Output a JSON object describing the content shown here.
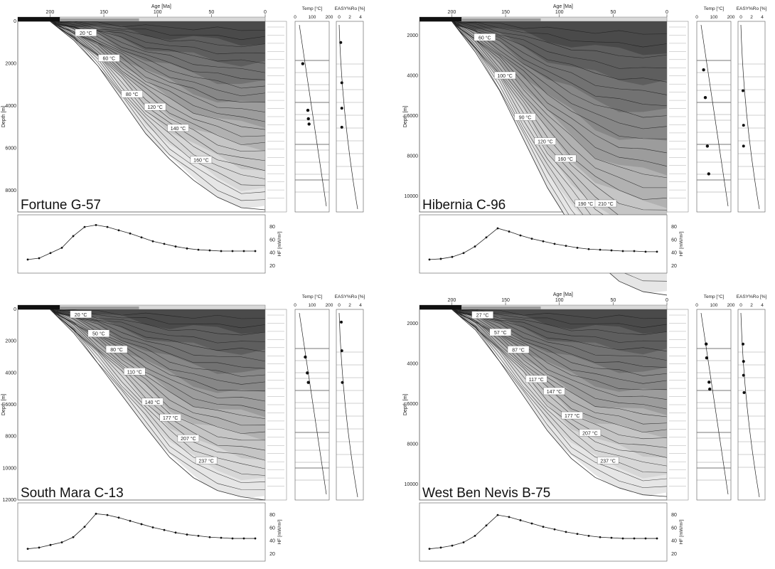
{
  "chart_data": [
    {
      "type": "area",
      "title": "Fortune G-57",
      "xlabel": "Age [Ma]",
      "ylabel": "Depth [m]",
      "xlim": [
        230,
        0
      ],
      "ylim": [
        0,
        9000
      ],
      "x_ticks": [
        "200",
        "150",
        "100",
        "50",
        "0"
      ],
      "y_ticks": [
        "0",
        "2000",
        "4000",
        "6000",
        "8000"
      ],
      "isotherms": [
        {
          "label": "20 °C",
          "depth": 600
        },
        {
          "label": "60 °C",
          "depth": 1800
        },
        {
          "label": "80 °C",
          "depth": 3500
        },
        {
          "label": "120 °C",
          "depth": 4100
        },
        {
          "label": "140 °C",
          "depth": 5100
        },
        {
          "label": "160 °C",
          "depth": 6600
        }
      ],
      "basin_bottom_depth": [
        0,
        900,
        2100,
        3700,
        5300,
        6500,
        7500,
        8300,
        8800,
        8900
      ],
      "temp_panel": {
        "xlabel": "Temp [°C]",
        "x_ticks": [
          "0",
          "100",
          "200"
        ],
        "calibration": [
          {
            "t": 45,
            "d": 2000
          },
          {
            "t": 75,
            "d": 4200
          },
          {
            "t": 78,
            "d": 4600
          },
          {
            "t": 82,
            "d": 4850
          }
        ]
      },
      "ro_panel": {
        "xlabel": "EASY%Ro [%]",
        "x_ticks": [
          "0",
          "2",
          "4"
        ],
        "calibration": [
          {
            "ro": 0.3,
            "d": 1000
          },
          {
            "ro": 0.5,
            "d": 2900
          },
          {
            "ro": 0.5,
            "d": 4100
          },
          {
            "ro": 0.5,
            "d": 5000
          }
        ]
      },
      "heatflow": {
        "ylabel": "HF [mW/m²]",
        "y_ticks": [
          "80",
          "60",
          "40",
          "20"
        ],
        "values": [
          30,
          32,
          40,
          48,
          66,
          80,
          83,
          80,
          75,
          70,
          64,
          58,
          54,
          50,
          47,
          45,
          44,
          43,
          43,
          43,
          43
        ]
      }
    },
    {
      "type": "area",
      "title": "Hibernia C-96",
      "xlabel": "Age [Ma]",
      "ylabel": "Depth [m]",
      "xlim": [
        230,
        0
      ],
      "ylim": [
        0,
        5500
      ],
      "x_ticks": [
        "200",
        "150",
        "100",
        "50",
        "0"
      ],
      "y_ticks": [
        "2000",
        "4000",
        "6000",
        "8000",
        "10000"
      ],
      "isotherms": [
        {
          "label": "60 °C",
          "depth": 500
        },
        {
          "label": "100 °C",
          "depth": 1600
        },
        {
          "label": "90 °C",
          "depth": 2800
        },
        {
          "label": "120 °C",
          "depth": 3500
        },
        {
          "label": "160 °C",
          "depth": 4000
        },
        {
          "label": "190 °C",
          "depth": 5600
        },
        {
          "label": "210 °C",
          "depth": 6700
        }
      ],
      "basin_bottom_depth": [
        0,
        900,
        2000,
        3400,
        4800,
        5900,
        6900,
        7500,
        7800,
        7900
      ],
      "temp_panel": {
        "xlabel": "Temp [°C]",
        "x_ticks": [
          "0",
          "100",
          "200"
        ],
        "calibration": [
          {
            "t": 40,
            "d": 1400
          },
          {
            "t": 50,
            "d": 2200
          },
          {
            "t": 62,
            "d": 3600
          },
          {
            "t": 70,
            "d": 4400
          }
        ]
      },
      "ro_panel": {
        "xlabel": "EASY%Ro [%]",
        "x_ticks": [
          "0",
          "2",
          "4"
        ],
        "calibration": [
          {
            "ro": 0.4,
            "d": 2000
          },
          {
            "ro": 0.5,
            "d": 3000
          },
          {
            "ro": 0.5,
            "d": 3600
          }
        ]
      },
      "heatflow": {
        "ylabel": "HF [mW/m²]",
        "y_ticks": [
          "80",
          "60",
          "40",
          "20"
        ],
        "values": [
          30,
          31,
          34,
          40,
          50,
          64,
          78,
          73,
          67,
          62,
          58,
          54,
          51,
          48,
          46,
          45,
          44,
          43,
          43,
          42,
          42
        ]
      }
    },
    {
      "type": "area",
      "title": "South Mara C-13",
      "xlabel": "",
      "ylabel": "Depth [m]",
      "xlim": [
        230,
        0
      ],
      "ylim": [
        0,
        12000
      ],
      "x_ticks": [],
      "y_ticks": [
        "0",
        "2000",
        "4000",
        "6000",
        "8000",
        "10000",
        "12000"
      ],
      "isotherms": [
        {
          "label": "20 °C",
          "depth": 400
        },
        {
          "label": "50 °C",
          "depth": 1600
        },
        {
          "label": "80 °C",
          "depth": 2600
        },
        {
          "label": "110 °C",
          "depth": 4000
        },
        {
          "label": "140 °C",
          "depth": 5900
        },
        {
          "label": "177 °C",
          "depth": 6900
        },
        {
          "label": "207 °C",
          "depth": 8200
        },
        {
          "label": "237 °C",
          "depth": 9600
        }
      ],
      "basin_bottom_depth": [
        0,
        1500,
        3400,
        5400,
        7400,
        9300,
        10600,
        11400,
        11800,
        12000
      ],
      "temp_panel": {
        "xlabel": "Temp [°C]",
        "x_ticks": [
          "0",
          "100",
          "200"
        ],
        "calibration": [
          {
            "t": 60,
            "d": 3000
          },
          {
            "t": 72,
            "d": 4000
          },
          {
            "t": 78,
            "d": 4600
          }
        ]
      },
      "ro_panel": {
        "xlabel": "EASY%Ro [%]",
        "x_ticks": [
          "0",
          "2",
          "4"
        ],
        "calibration": [
          {
            "ro": 0.4,
            "d": 800
          },
          {
            "ro": 0.5,
            "d": 2600
          },
          {
            "ro": 0.6,
            "d": 4600
          }
        ]
      },
      "heatflow": {
        "ylabel": "HF [mW/m²]",
        "y_ticks": [
          "80",
          "60",
          "40",
          "20"
        ],
        "values": [
          28,
          30,
          34,
          38,
          46,
          62,
          82,
          80,
          76,
          71,
          66,
          61,
          57,
          53,
          50,
          48,
          46,
          45,
          44,
          44,
          44
        ]
      }
    },
    {
      "type": "area",
      "title": "West Ben Nevis B-75",
      "xlabel": "Age [Ma]",
      "ylabel": "Depth [m]",
      "xlim": [
        230,
        0
      ],
      "ylim": [
        0,
        11000
      ],
      "x_ticks": [
        "200",
        "150",
        "100",
        "50",
        "0"
      ],
      "y_ticks": [
        "2000",
        "4000",
        "6000",
        "8000",
        "10000"
      ],
      "isotherms": [
        {
          "label": "27 °C",
          "depth": 400
        },
        {
          "label": "57 °C",
          "depth": 1400
        },
        {
          "label": "87 °C",
          "depth": 2400
        },
        {
          "label": "117 °C",
          "depth": 4100
        },
        {
          "label": "147 °C",
          "depth": 4800
        },
        {
          "label": "177 °C",
          "depth": 6200
        },
        {
          "label": "207 °C",
          "depth": 7200
        },
        {
          "label": "237 °C",
          "depth": 8800
        }
      ],
      "basin_bottom_depth": [
        0,
        1200,
        3000,
        5000,
        7000,
        8600,
        9700,
        10300,
        10700,
        10800
      ],
      "temp_panel": {
        "xlabel": "Temp [°C]",
        "x_ticks": [
          "0",
          "100",
          "200"
        ],
        "calibration": [
          {
            "t": 55,
            "d": 2000
          },
          {
            "t": 58,
            "d": 2800
          },
          {
            "t": 72,
            "d": 4200
          },
          {
            "t": 76,
            "d": 4600
          }
        ]
      },
      "ro_panel": {
        "xlabel": "EASY%Ro [%]",
        "x_ticks": [
          "0",
          "2",
          "4"
        ],
        "calibration": [
          {
            "ro": 0.4,
            "d": 2000
          },
          {
            "ro": 0.5,
            "d": 3000
          },
          {
            "ro": 0.5,
            "d": 3800
          },
          {
            "ro": 0.6,
            "d": 4800
          }
        ]
      },
      "heatflow": {
        "ylabel": "HF [mW/m²]",
        "y_ticks": [
          "80",
          "60",
          "40",
          "20"
        ],
        "values": [
          28,
          30,
          33,
          38,
          48,
          64,
          80,
          77,
          72,
          67,
          62,
          58,
          54,
          51,
          48,
          46,
          45,
          44,
          44,
          44,
          44
        ]
      }
    }
  ]
}
